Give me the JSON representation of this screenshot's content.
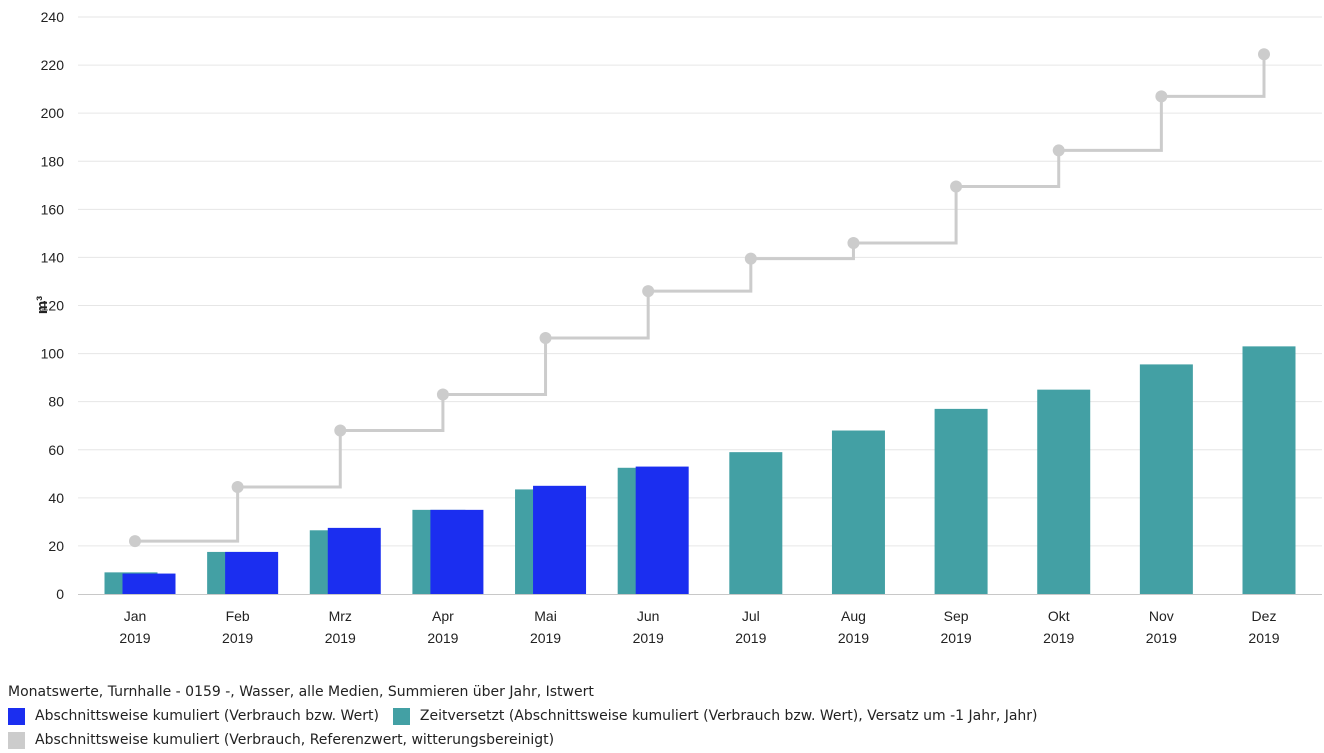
{
  "chart_data": {
    "type": "bar",
    "ylabel": "m³",
    "ylim": [
      0,
      240
    ],
    "yticks": [
      0,
      20,
      40,
      60,
      80,
      100,
      120,
      140,
      160,
      180,
      200,
      220,
      240
    ],
    "grid": true,
    "categories": [
      "Jan",
      "Feb",
      "Mrz",
      "Apr",
      "Mai",
      "Jun",
      "Jul",
      "Aug",
      "Sep",
      "Okt",
      "Nov",
      "Dez"
    ],
    "category_years": [
      "2019",
      "2019",
      "2019",
      "2019",
      "2019",
      "2019",
      "2019",
      "2019",
      "2019",
      "2019",
      "2019",
      "2019"
    ],
    "series": [
      {
        "name": "Zeitversetzt (Abschnittsweise kumuliert (Verbrauch bzw. Wert), Versatz um -1 Jahr, Jahr)",
        "kind": "bar",
        "color": "#43a0a4",
        "values": [
          9,
          17.5,
          26.5,
          35,
          43.5,
          52.5,
          59,
          68,
          77,
          85,
          95.5,
          103
        ]
      },
      {
        "name": "Abschnittsweise kumuliert (Verbrauch bzw. Wert)",
        "kind": "bar",
        "color": "#1b2ef0",
        "values": [
          8.5,
          17.5,
          27.5,
          35,
          45,
          53,
          null,
          null,
          null,
          null,
          null,
          null
        ]
      },
      {
        "name": "Abschnittsweise kumuliert (Verbrauch, Referenzwert, witterungsbereinigt)",
        "kind": "step-line",
        "color": "#cccccc",
        "values": [
          22,
          44.5,
          68,
          83,
          106.5,
          126,
          139.5,
          146,
          169.5,
          184.5,
          207,
          224.5
        ]
      }
    ],
    "legend_position": "bottom-left",
    "legend_title": "Monatswerte, Turnhalle - 0159 -, Wasser, alle Medien, Summieren über Jahr, Istwert"
  }
}
